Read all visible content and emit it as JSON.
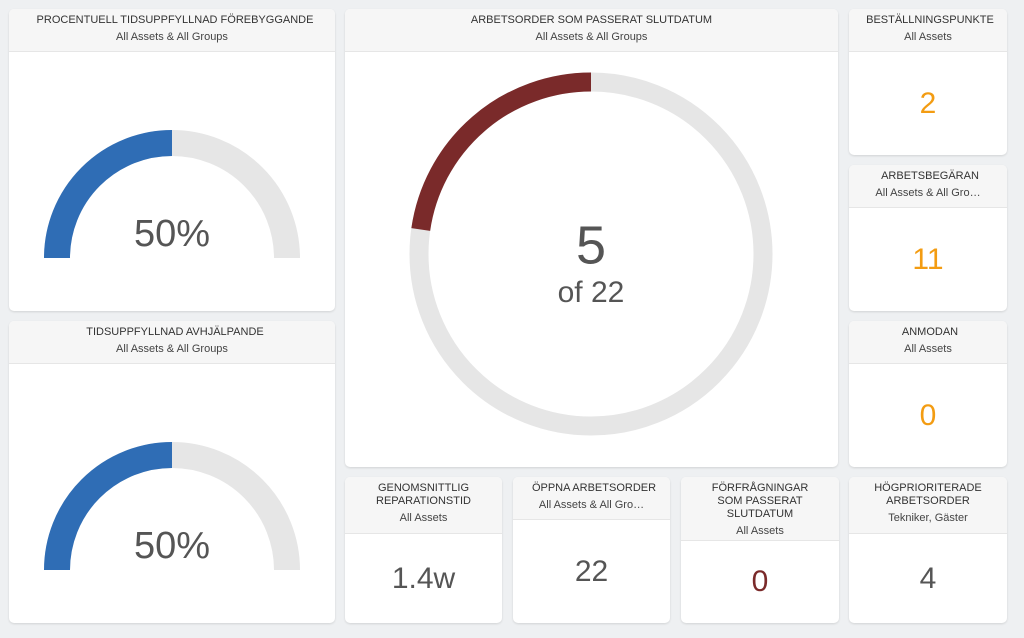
{
  "widgets": [
    {
      "type": "gauge",
      "title": "PROCENTUELL TIDSUPPFYLLNAD FÖREBYGGANDE",
      "subtitle": "All Assets & All Groups",
      "value": 50,
      "value_label": "50%",
      "color": "#2f6db5"
    },
    {
      "type": "donut",
      "title": "ARBETSORDER SOM PASSERAT SLUTDATUM",
      "subtitle": "All Assets & All Groups",
      "value": 5,
      "total": 22,
      "total_label": "of 22",
      "color": "#7a2a2a"
    },
    {
      "type": "kpi",
      "title": "BESTÄLLNINGSPUNKTE",
      "subtitle": "All Assets",
      "value": 2,
      "color": "#f39c12"
    },
    {
      "type": "kpi",
      "title": "ARBETSBEGÄRAN",
      "subtitle": "All Assets & All Gro…",
      "value": 11,
      "color": "#f39c12"
    },
    {
      "type": "gauge",
      "title": "TIDSUPPFYLLNAD AVHJÄLPANDE",
      "subtitle": "All Assets & All Groups",
      "value": 50,
      "value_label": "50%",
      "color": "#2f6db5"
    },
    {
      "type": "kpi",
      "title": "ANMODAN",
      "subtitle": "All Assets",
      "value": 0,
      "color": "#f39c12"
    },
    {
      "type": "kpi",
      "title": "GENOMSNITTLIG REPARATIONSTID",
      "subtitle": "All Assets",
      "value": "1.4w",
      "color": "#555555"
    },
    {
      "type": "kpi",
      "title": "ÖPPNA ARBETSORDER",
      "subtitle": "All Assets & All Gro…",
      "value": 22,
      "color": "#555555"
    },
    {
      "type": "kpi",
      "title": "FÖRFRÅGNINGAR SOM PASSERAT SLUTDATUM",
      "subtitle": "All Assets",
      "value": 0,
      "color": "#7a2a2a"
    },
    {
      "type": "kpi",
      "title": "HÖGPRIORITERADE ARBETSORDER",
      "subtitle": "Tekniker, Gäster",
      "value": 4,
      "color": "#555555"
    }
  ]
}
